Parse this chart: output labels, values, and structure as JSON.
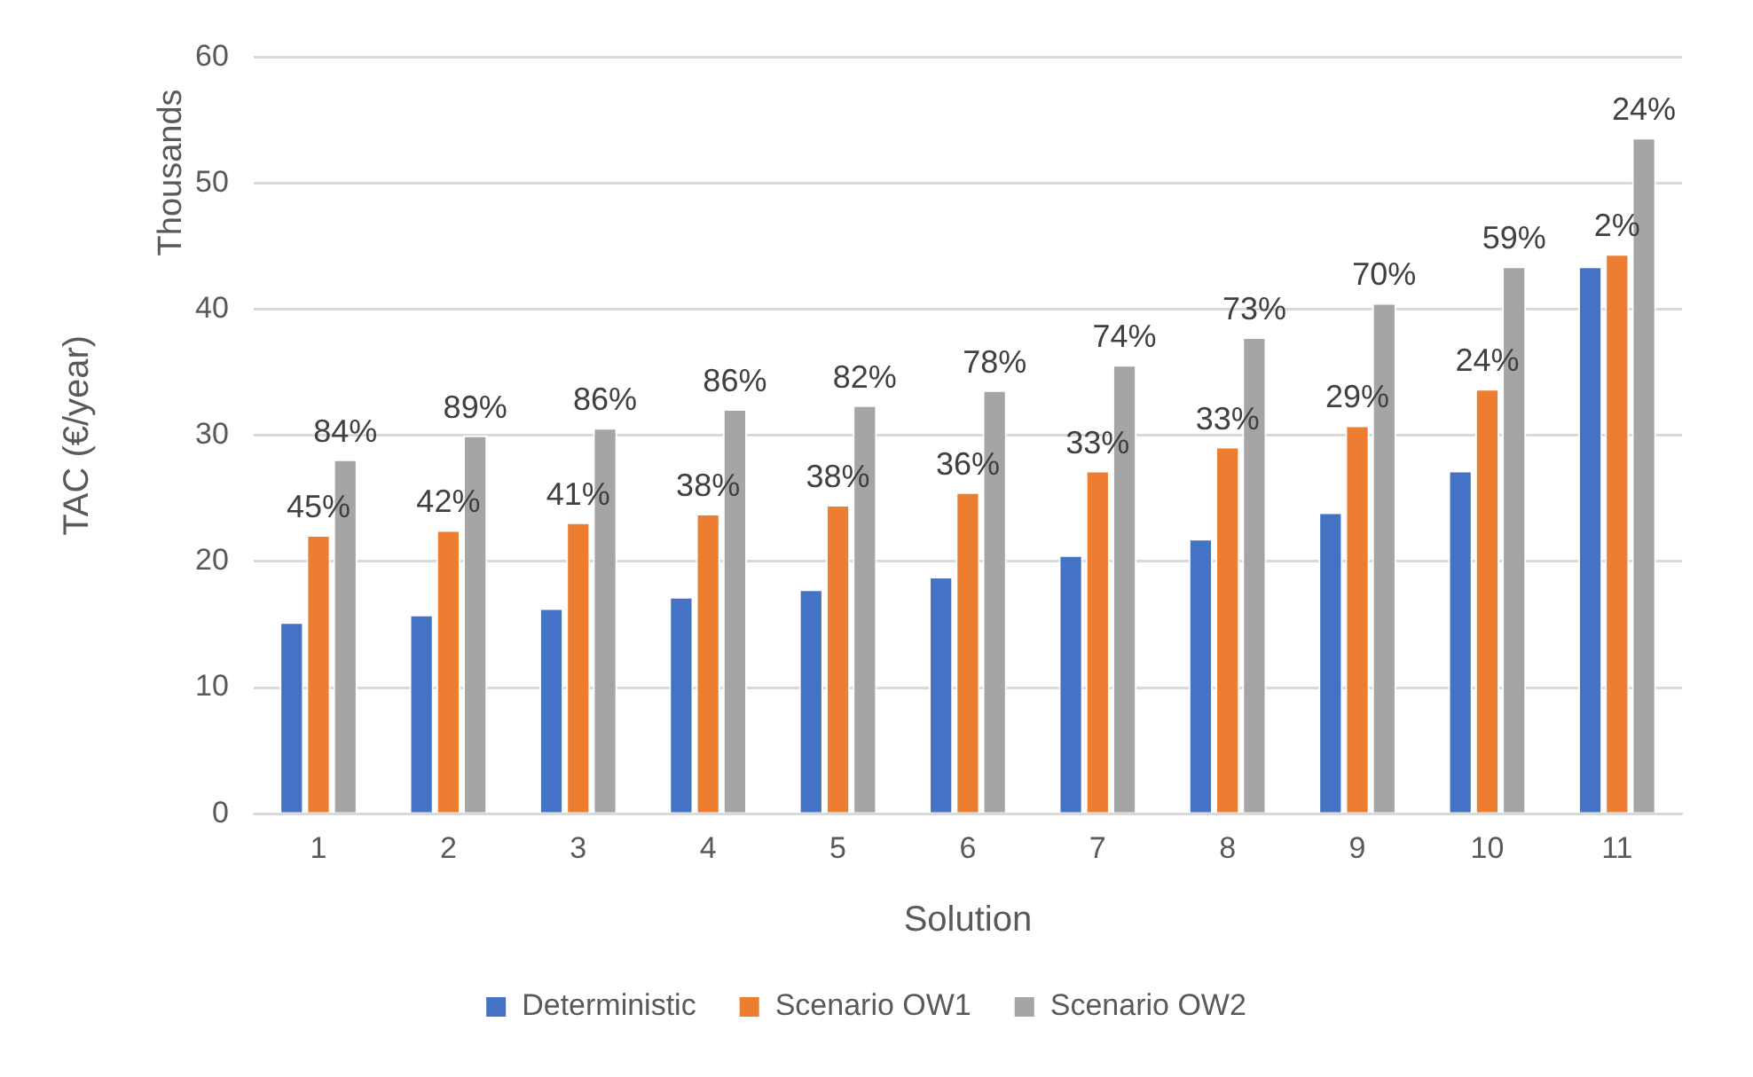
{
  "chart_data": {
    "type": "bar",
    "xlabel": "Solution",
    "ylabel": "TAC (€/year)",
    "annotations": [
      "Thousands",
      {
        "text": "45%",
        "x": "1",
        "y": 22.1
      },
      {
        "text": "42%",
        "x": "2",
        "y": 22.5
      },
      {
        "text": "41%",
        "x": "3",
        "y": 23.1
      },
      {
        "text": "38%",
        "x": "4",
        "y": 23.8
      },
      {
        "text": "38%",
        "x": "5",
        "y": 24.5
      },
      {
        "text": "36%",
        "x": "6",
        "y": 25.5
      },
      {
        "text": "33%",
        "x": "7",
        "y": 27.2
      },
      {
        "text": "33%",
        "x": "8",
        "y": 29.1
      },
      {
        "text": "29%",
        "x": "9",
        "y": 30.8
      },
      {
        "text": "24%",
        "x": "10",
        "y": 33.7
      },
      {
        "text": "2%",
        "x": "11",
        "y": 44.4
      },
      "84%",
      "89%",
      "86%",
      "86%",
      "82%",
      "78%",
      "74%",
      "73%",
      "70%",
      "59%",
      "24%"
    ],
    "categories": [
      "1",
      "2",
      "3",
      "4",
      "5",
      "6",
      "7",
      "8",
      "9",
      "10",
      "11"
    ],
    "series": [
      {
        "name": "Deterministic",
        "color": "#4472c4",
        "values": [
          15.2,
          15.8,
          16.3,
          17.2,
          17.8,
          18.8,
          20.5,
          21.8,
          23.9,
          27.2,
          43.4
        ]
      },
      {
        "name": "Scenario OW1",
        "color": "#ed7d31",
        "values": [
          22.1,
          22.5,
          23.1,
          23.8,
          24.5,
          25.5,
          27.2,
          29.1,
          30.8,
          33.7,
          44.4
        ]
      },
      {
        "name": "Scenario OW2",
        "color": "#a5a5a5",
        "values": [
          28.1,
          30.0,
          30.6,
          32.1,
          32.4,
          33.6,
          35.6,
          37.8,
          40.5,
          43.4,
          53.6
        ]
      }
    ],
    "ylim": [
      0,
      60
    ],
    "yticks": [
      0,
      10,
      20,
      30,
      40,
      50,
      60
    ],
    "grid": "y",
    "legend": "bottom"
  }
}
